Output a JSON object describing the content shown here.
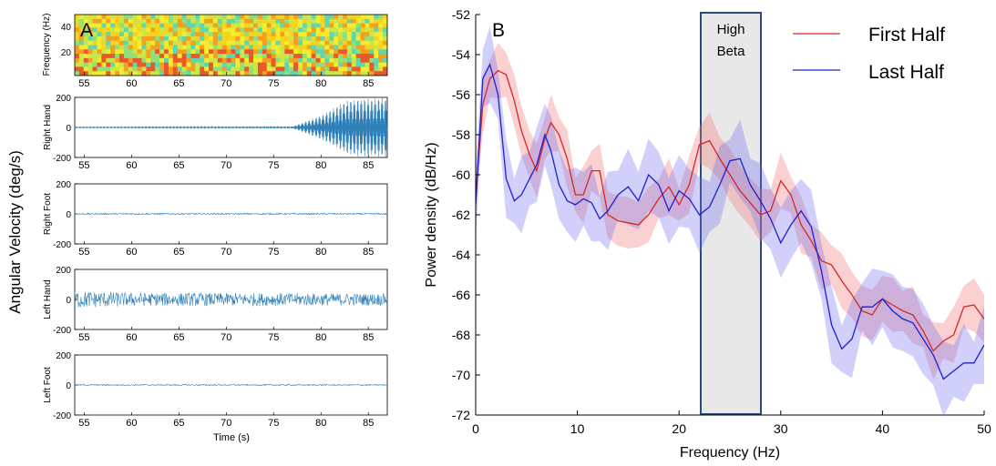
{
  "panel_a": {
    "label": "A",
    "ylabel": "Angular Velocity (deg/s)",
    "xlabel": "Time (s)",
    "x_ticks": [
      "55",
      "60",
      "65",
      "70",
      "75",
      "80",
      "85"
    ],
    "spectrogram": {
      "ylabel": "Frequency (Hz)",
      "y_ticks": [
        "40",
        "20"
      ]
    },
    "traces": [
      {
        "label": "Right Hand",
        "y_ticks": [
          "200",
          "0",
          "-200"
        ]
      },
      {
        "label": "Right Foot",
        "y_ticks": [
          "200",
          "0",
          "-200"
        ]
      },
      {
        "label": "Left Hand",
        "y_ticks": [
          "200",
          "0",
          "-200"
        ]
      },
      {
        "label": "Left Foot",
        "y_ticks": [
          "200",
          "0",
          "-200"
        ]
      }
    ]
  },
  "panel_b": {
    "label": "B",
    "ylabel": "Power density (dB/Hz)",
    "xlabel": "Frequency (Hz)",
    "band_label_1": "High",
    "band_label_2": "Beta",
    "legend": [
      {
        "name": "First Half",
        "color": "#d62728"
      },
      {
        "name": "Last Half",
        "color": "#2020cc"
      }
    ]
  },
  "chart_data": [
    {
      "type": "heatmap",
      "panel": "A-spectrogram",
      "xlim": [
        54,
        87
      ],
      "ylim": [
        5,
        50
      ],
      "x_ticks": [
        55,
        60,
        65,
        70,
        75,
        80,
        85
      ],
      "y_ticks": [
        20,
        40
      ],
      "colormap": "jet"
    },
    {
      "type": "line",
      "panel": "A-traces",
      "xlabel": "Time (s)",
      "xlim": [
        54,
        87
      ],
      "ylim": [
        -200,
        200
      ],
      "x_ticks": [
        55,
        60,
        65,
        70,
        75,
        80,
        85
      ],
      "y_ticks": [
        -200,
        0,
        200
      ],
      "series": [
        {
          "name": "Right Hand",
          "amplitude_profile": {
            "t": [
              54,
              77,
              80,
              83,
              87
            ],
            "amp": [
              3,
              6,
              80,
              190,
              200
            ]
          }
        },
        {
          "name": "Right Foot",
          "amplitude_profile": {
            "t": [
              54,
              87
            ],
            "amp": [
              5,
              5
            ]
          }
        },
        {
          "name": "Left Hand",
          "amplitude_profile": {
            "t": [
              54,
              60,
              87
            ],
            "amp": [
              60,
              45,
              40
            ]
          }
        },
        {
          "name": "Left Foot",
          "amplitude_profile": {
            "t": [
              54,
              87
            ],
            "amp": [
              4,
              4
            ]
          }
        }
      ]
    },
    {
      "type": "line",
      "panel": "B",
      "xlabel": "Frequency (Hz)",
      "ylabel": "Power density (dB/Hz)",
      "xlim": [
        0,
        50
      ],
      "ylim": [
        -72,
        -52
      ],
      "x_ticks": [
        0,
        10,
        20,
        30,
        40,
        50
      ],
      "y_ticks": [
        -52,
        -54,
        -56,
        -58,
        -60,
        -62,
        -64,
        -66,
        -68,
        -70,
        -72
      ],
      "highlight_band": {
        "label": "High Beta",
        "x": [
          22,
          28
        ]
      },
      "series": [
        {
          "name": "First Half",
          "color": "#d62728",
          "x": [
            0,
            0.7,
            1.4,
            2.2,
            3.0,
            3.8,
            4.5,
            5.3,
            6.0,
            6.8,
            7.4,
            8.2,
            9.0,
            9.8,
            10.6,
            11.4,
            12.2,
            13.0,
            14.0,
            15.0,
            16.0,
            17.0,
            18.0,
            19.0,
            20.0,
            21.0,
            22.0,
            23.0,
            24.0,
            25.0,
            26.0,
            27.0,
            28.0,
            29.0,
            30.0,
            31.0,
            32.0,
            33.0,
            34.0,
            35.0,
            36.0,
            37.0,
            38.0,
            39.0,
            40.0,
            41.0,
            42.0,
            43.0,
            44.0,
            45.0,
            46.0,
            47.0,
            48.0,
            49.0,
            50.0
          ],
          "y": [
            -61.0,
            -56.5,
            -55.2,
            -54.8,
            -55.0,
            -56.3,
            -57.8,
            -59.0,
            -59.8,
            -58.2,
            -57.4,
            -58.0,
            -59.2,
            -61.0,
            -61.0,
            -59.8,
            -59.8,
            -62.0,
            -62.3,
            -62.4,
            -62.5,
            -62.0,
            -61.2,
            -60.6,
            -61.5,
            -60.5,
            -58.5,
            -58.3,
            -59.2,
            -60.0,
            -60.8,
            -61.4,
            -62.0,
            -61.8,
            -60.3,
            -61.0,
            -62.5,
            -63.3,
            -64.3,
            -64.5,
            -65.3,
            -66.0,
            -66.8,
            -67.0,
            -66.2,
            -66.5,
            -66.8,
            -67.0,
            -67.8,
            -68.8,
            -68.3,
            -68.0,
            -66.6,
            -66.5,
            -67.2
          ],
          "band_halfwidth": 1.1
        },
        {
          "name": "Last Half",
          "color": "#2020cc",
          "x": [
            0,
            0.7,
            1.4,
            2.2,
            3.0,
            3.8,
            4.5,
            5.3,
            6.0,
            6.8,
            7.4,
            8.2,
            9.0,
            9.8,
            10.6,
            11.4,
            12.2,
            13.0,
            14.0,
            15.0,
            16.0,
            17.0,
            18.0,
            19.0,
            20.0,
            21.0,
            22.0,
            23.0,
            24.0,
            25.0,
            26.0,
            27.0,
            28.0,
            29.0,
            30.0,
            31.0,
            32.0,
            33.0,
            34.0,
            35.0,
            36.0,
            37.0,
            38.0,
            39.0,
            40.0,
            41.0,
            42.0,
            43.0,
            44.0,
            45.0,
            46.0,
            47.0,
            48.0,
            49.0,
            50.0
          ],
          "y": [
            -61.5,
            -55.2,
            -54.5,
            -56.0,
            -60.2,
            -61.3,
            -61.0,
            -60.2,
            -59.5,
            -58.0,
            -58.8,
            -60.5,
            -61.3,
            -61.5,
            -61.2,
            -61.4,
            -62.2,
            -61.8,
            -61.0,
            -60.6,
            -61.3,
            -60.0,
            -60.5,
            -61.8,
            -60.8,
            -61.2,
            -62.0,
            -61.6,
            -60.5,
            -59.3,
            -59.2,
            -60.5,
            -61.3,
            -62.2,
            -63.4,
            -62.5,
            -61.8,
            -62.6,
            -64.8,
            -67.5,
            -68.7,
            -68.2,
            -66.6,
            -66.6,
            -66.2,
            -66.8,
            -67.2,
            -67.4,
            -68.2,
            -69.0,
            -70.2,
            -69.8,
            -69.4,
            -69.4,
            -68.5
          ],
          "band_halfwidth": 1.5
        }
      ]
    }
  ]
}
